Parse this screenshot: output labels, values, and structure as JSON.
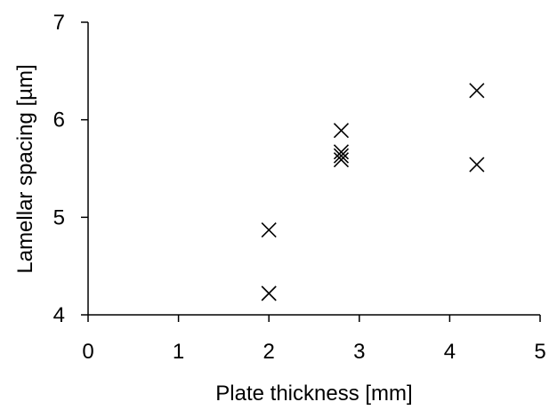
{
  "chart_data": {
    "type": "scatter",
    "title": "",
    "xlabel": "Plate thickness [mm]",
    "ylabel": "Lamellar spacing [µm]",
    "xlim": [
      0,
      5
    ],
    "ylim": [
      4,
      7
    ],
    "xticks": [
      "0",
      "1",
      "2",
      "3",
      "4",
      "5"
    ],
    "yticks": [
      "4",
      "5",
      "6",
      "7"
    ],
    "grid": false,
    "legend": "none",
    "marker": "x",
    "color": "#000000",
    "points": [
      {
        "x": 2.0,
        "y": 4.87
      },
      {
        "x": 2.0,
        "y": 4.22
      },
      {
        "x": 2.8,
        "y": 5.89
      },
      {
        "x": 2.8,
        "y": 5.67
      },
      {
        "x": 2.8,
        "y": 5.63
      },
      {
        "x": 2.8,
        "y": 5.59
      },
      {
        "x": 4.3,
        "y": 6.3
      },
      {
        "x": 4.3,
        "y": 5.54
      }
    ]
  }
}
